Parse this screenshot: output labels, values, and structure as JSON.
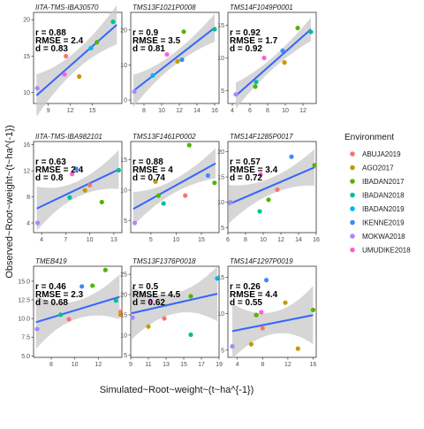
{
  "chart_data": {
    "type": "scatter",
    "x_label": "Simulated~Root~weight~(t~ha^{-1})",
    "y_label": "Observed~Root~weight~(t~ha^{-1})",
    "legend": {
      "title": "Environment",
      "entries": [
        {
          "name": "ABUJA2019",
          "color": "#F8766D"
        },
        {
          "name": "AGO2017",
          "color": "#C49A00"
        },
        {
          "name": "IBADAN2017",
          "color": "#53B400"
        },
        {
          "name": "IBADAN2018",
          "color": "#00C094"
        },
        {
          "name": "IBADAN2019",
          "color": "#00B6EB"
        },
        {
          "name": "IKENNE2019",
          "color": "#3A8DF7"
        },
        {
          "name": "MOKWA2018",
          "color": "#A58AFF"
        },
        {
          "name": "UMUDIKE2018",
          "color": "#FB61D7"
        }
      ]
    },
    "panels": [
      {
        "title": "IITA-TMS-IBA30570",
        "stats": [
          "r = 0.88",
          "RMSE = 2.4",
          "d = 0.83"
        ],
        "xlim": [
          7,
          19
        ],
        "ylim": [
          8.5,
          21
        ],
        "xticks": [
          9,
          12,
          15
        ],
        "yticks": [
          10,
          15,
          20
        ],
        "fit": {
          "x": [
            7.4,
            18.3
          ],
          "y": [
            9.6,
            19.3
          ]
        },
        "band_half_width": [
          2.9,
          1.3,
          2.7
        ],
        "points": [
          {
            "x": 7.5,
            "y": 10.6,
            "env": "MOKWA2018"
          },
          {
            "x": 11.2,
            "y": 12.5,
            "env": "UMUDIKE2018"
          },
          {
            "x": 11.4,
            "y": 15.0,
            "env": "ABUJA2019"
          },
          {
            "x": 13.2,
            "y": 12.2,
            "env": "AGO2017"
          },
          {
            "x": 14.8,
            "y": 16.1,
            "env": "IBADAN2019"
          },
          {
            "x": 15.6,
            "y": 16.9,
            "env": "IBADAN2017"
          },
          {
            "x": 17.8,
            "y": 19.7,
            "env": "IBADAN2018"
          }
        ]
      },
      {
        "title": "TMS13F1021P0008",
        "stats": [
          "r = 0.9",
          "RMSE = 3.5",
          "d = 0.81"
        ],
        "xlim": [
          6.5,
          16.5
        ],
        "ylim": [
          -1,
          25
        ],
        "xticks": [
          8,
          10,
          12,
          14,
          16
        ],
        "yticks": [
          0,
          10,
          20
        ],
        "fit": {
          "x": [
            6.8,
            16.0
          ],
          "y": [
            2.6,
            20.6
          ]
        },
        "band_half_width": [
          4.6,
          1.8,
          4.0
        ],
        "points": [
          {
            "x": 6.9,
            "y": 2.4,
            "env": "MOKWA2018"
          },
          {
            "x": 9.0,
            "y": 7.0,
            "env": "IBADAN2019"
          },
          {
            "x": 10.6,
            "y": 13.0,
            "env": "UMUDIKE2018"
          },
          {
            "x": 11.8,
            "y": 11.0,
            "env": "AGO2017"
          },
          {
            "x": 12.3,
            "y": 11.5,
            "env": "IKENNE2019"
          },
          {
            "x": 12.5,
            "y": 19.5,
            "env": "IBADAN2017"
          },
          {
            "x": 16.0,
            "y": 20.2,
            "env": "IBADAN2018"
          }
        ]
      },
      {
        "title": "TMS14F1049P0001",
        "stats": [
          "r = 0.92",
          "RMSE = 1.7",
          "d = 0.92"
        ],
        "xlim": [
          3.5,
          13.5
        ],
        "ylim": [
          3,
          17
        ],
        "xticks": [
          4,
          6,
          8,
          10,
          12
        ],
        "yticks": [
          5,
          10,
          15
        ],
        "fit": {
          "x": [
            4.4,
            12.9
          ],
          "y": [
            4.2,
            14.4
          ]
        },
        "band_half_width": [
          2.0,
          0.9,
          1.8
        ],
        "points": [
          {
            "x": 4.4,
            "y": 4.4,
            "env": "MOKWA2018"
          },
          {
            "x": 6.6,
            "y": 5.6,
            "env": "IBADAN2017"
          },
          {
            "x": 6.7,
            "y": 6.3,
            "env": "IBADAN2018"
          },
          {
            "x": 7.6,
            "y": 10.0,
            "env": "UMUDIKE2018"
          },
          {
            "x": 9.7,
            "y": 11.1,
            "env": "IKENNE2019"
          },
          {
            "x": 9.9,
            "y": 9.3,
            "env": "AGO2017"
          },
          {
            "x": 11.4,
            "y": 14.6,
            "env": "IBADAN2017"
          },
          {
            "x": 12.9,
            "y": 14.0,
            "env": "IBADAN2018"
          }
        ]
      },
      {
        "title": "IITA-TMS-IBA982101",
        "stats": [
          "r = 0.63",
          "RMSE = 2.4",
          "d = 0.8"
        ],
        "xlim": [
          3,
          14
        ],
        "ylim": [
          2.5,
          16.5
        ],
        "xticks": [
          4,
          7,
          10,
          13
        ],
        "yticks": [
          4,
          8,
          12,
          16
        ],
        "fit": {
          "x": [
            3.4,
            13.6
          ],
          "y": [
            6.2,
            12.2
          ]
        },
        "band_half_width": [
          3.4,
          1.2,
          3.0
        ],
        "points": [
          {
            "x": 3.5,
            "y": 4.0,
            "env": "MOKWA2018"
          },
          {
            "x": 7.5,
            "y": 7.9,
            "env": "IBADAN2018"
          },
          {
            "x": 7.8,
            "y": 11.5,
            "env": "UMUDIKE2018"
          },
          {
            "x": 8.3,
            "y": 12.3,
            "env": "IKENNE2019"
          },
          {
            "x": 9.4,
            "y": 9.0,
            "env": "AGO2017"
          },
          {
            "x": 10.0,
            "y": 9.8,
            "env": "ABUJA2019"
          },
          {
            "x": 11.5,
            "y": 7.2,
            "env": "IBADAN2017"
          },
          {
            "x": 13.6,
            "y": 12.1,
            "env": "IBADAN2018"
          }
        ]
      },
      {
        "title": "TMS13F1461P0002",
        "stats": [
          "r = 0.88",
          "RMSE = 4",
          "d = 0.74"
        ],
        "xlim": [
          1,
          18.5
        ],
        "ylim": [
          3,
          18
        ],
        "xticks": [
          5,
          10,
          15
        ],
        "yticks": [
          5,
          10,
          15
        ],
        "fit": {
          "x": [
            1.5,
            17.8
          ],
          "y": [
            6.9,
            14.4
          ]
        },
        "band_half_width": [
          2.8,
          1.1,
          2.5
        ],
        "points": [
          {
            "x": 1.8,
            "y": 4.6,
            "env": "MOKWA2018"
          },
          {
            "x": 5.9,
            "y": 11.4,
            "env": "AGO2017"
          },
          {
            "x": 6.5,
            "y": 9.1,
            "env": "IBADAN2017"
          },
          {
            "x": 7.5,
            "y": 7.8,
            "env": "IBADAN2018"
          },
          {
            "x": 11.8,
            "y": 9.1,
            "env": "ABUJA2019"
          },
          {
            "x": 12.6,
            "y": 17.4,
            "env": "IBADAN2017"
          },
          {
            "x": 16.3,
            "y": 12.4,
            "env": "IKENNE2019"
          },
          {
            "x": 17.6,
            "y": 11.2,
            "env": "IBADAN2017"
          }
        ]
      },
      {
        "title": "TMS14F1285P0017",
        "stats": [
          "r = 0.57",
          "RMSE = 3.4",
          "d = 0.72"
        ],
        "xlim": [
          6,
          16
        ],
        "ylim": [
          4,
          22
        ],
        "xticks": [
          6,
          8,
          10,
          12,
          14,
          16
        ],
        "yticks": [
          5,
          10,
          15,
          20
        ],
        "fit": {
          "x": [
            6.1,
            15.8
          ],
          "y": [
            9.6,
            16.9
          ]
        },
        "band_half_width": [
          3.8,
          1.6,
          3.6
        ],
        "points": [
          {
            "x": 6.3,
            "y": 10.0,
            "env": "MOKWA2018"
          },
          {
            "x": 9.6,
            "y": 8.2,
            "env": "IBADAN2018"
          },
          {
            "x": 9.7,
            "y": 15.5,
            "env": "UMUDIKE2018"
          },
          {
            "x": 10.6,
            "y": 10.5,
            "env": "IBADAN2017"
          },
          {
            "x": 11.6,
            "y": 12.5,
            "env": "ABUJA2019"
          },
          {
            "x": 13.2,
            "y": 19.0,
            "env": "IKENNE2019"
          },
          {
            "x": 15.8,
            "y": 17.3,
            "env": "IBADAN2017"
          }
        ]
      },
      {
        "title": "TMEB419",
        "stats": [
          "r = 0.46",
          "RMSE = 2.3",
          "d = 0.68"
        ],
        "xlim": [
          6.5,
          14
        ],
        "ylim": [
          4.8,
          17
        ],
        "xticks": [
          8,
          10,
          12
        ],
        "yticks": [
          5.0,
          7.5,
          10.0,
          12.5,
          15.0
        ],
        "fit": {
          "x": [
            6.7,
            13.8
          ],
          "y": [
            9.5,
            12.9
          ]
        },
        "band_half_width": [
          3.6,
          1.2,
          3.0
        ],
        "points": [
          {
            "x": 6.8,
            "y": 8.6,
            "env": "MOKWA2018"
          },
          {
            "x": 8.8,
            "y": 10.5,
            "env": "IBADAN2018"
          },
          {
            "x": 9.5,
            "y": 9.9,
            "env": "ABUJA2019"
          },
          {
            "x": 10.6,
            "y": 14.3,
            "env": "IKENNE2019"
          },
          {
            "x": 11.5,
            "y": 14.4,
            "env": "IBADAN2017"
          },
          {
            "x": 12.6,
            "y": 16.5,
            "env": "IBADAN2017"
          },
          {
            "x": 13.5,
            "y": 12.4,
            "env": "IBADAN2018"
          },
          {
            "x": 13.9,
            "y": 10.9,
            "env": "ABUJA2019"
          },
          {
            "x": 13.9,
            "y": 10.5,
            "env": "AGO2017"
          }
        ]
      },
      {
        "title": "TMS13F1376P0018",
        "stats": [
          "r = 0.5",
          "RMSE = 4.5",
          "d = 0.62"
        ],
        "xlim": [
          9,
          19
        ],
        "ylim": [
          4.5,
          27
        ],
        "xticks": [
          9,
          11,
          13,
          15,
          17,
          19
        ],
        "yticks": [
          5,
          10,
          15,
          20,
          25
        ],
        "fit": {
          "x": [
            9.1,
            18.8
          ],
          "y": [
            15.4,
            20.2
          ]
        },
        "band_half_width": [
          6.5,
          2.5,
          6.8
        ],
        "points": [
          {
            "x": 9.2,
            "y": 14.3,
            "env": "MOKWA2018"
          },
          {
            "x": 11.0,
            "y": 12.1,
            "env": "AGO2017"
          },
          {
            "x": 11.2,
            "y": 18.2,
            "env": "UMUDIKE2018"
          },
          {
            "x": 12.8,
            "y": 14.1,
            "env": "ABUJA2019"
          },
          {
            "x": 15.8,
            "y": 10.1,
            "env": "IBADAN2018"
          },
          {
            "x": 15.8,
            "y": 19.6,
            "env": "IBADAN2017"
          },
          {
            "x": 18.8,
            "y": 24.0,
            "env": "IBADAN2019"
          }
        ]
      },
      {
        "title": "TMS14F1297P0019",
        "stats": [
          "r = 0.26",
          "RMSE = 4.4",
          "d = 0.55"
        ],
        "xlim": [
          2.5,
          16.5
        ],
        "ylim": [
          4,
          16.5
        ],
        "xticks": [
          4,
          8,
          12,
          16
        ],
        "yticks": [
          5,
          10,
          15
        ],
        "fit": {
          "x": [
            3.2,
            16.0
          ],
          "y": [
            7.6,
            9.8
          ]
        },
        "band_half_width": [
          3.8,
          1.5,
          4.0
        ],
        "points": [
          {
            "x": 3.2,
            "y": 5.5,
            "env": "MOKWA2018"
          },
          {
            "x": 6.2,
            "y": 5.8,
            "env": "AGO2017"
          },
          {
            "x": 7.0,
            "y": 9.8,
            "env": "IBADAN2017"
          },
          {
            "x": 7.8,
            "y": 10.2,
            "env": "UMUDIKE2018"
          },
          {
            "x": 8.0,
            "y": 8.0,
            "env": "ABUJA2019"
          },
          {
            "x": 8.6,
            "y": 14.6,
            "env": "IKENNE2019"
          },
          {
            "x": 11.6,
            "y": 11.5,
            "env": "AGO2017"
          },
          {
            "x": 13.6,
            "y": 5.2,
            "env": "AGO2017"
          },
          {
            "x": 16.0,
            "y": 10.5,
            "env": "IBADAN2017"
          }
        ]
      }
    ]
  }
}
